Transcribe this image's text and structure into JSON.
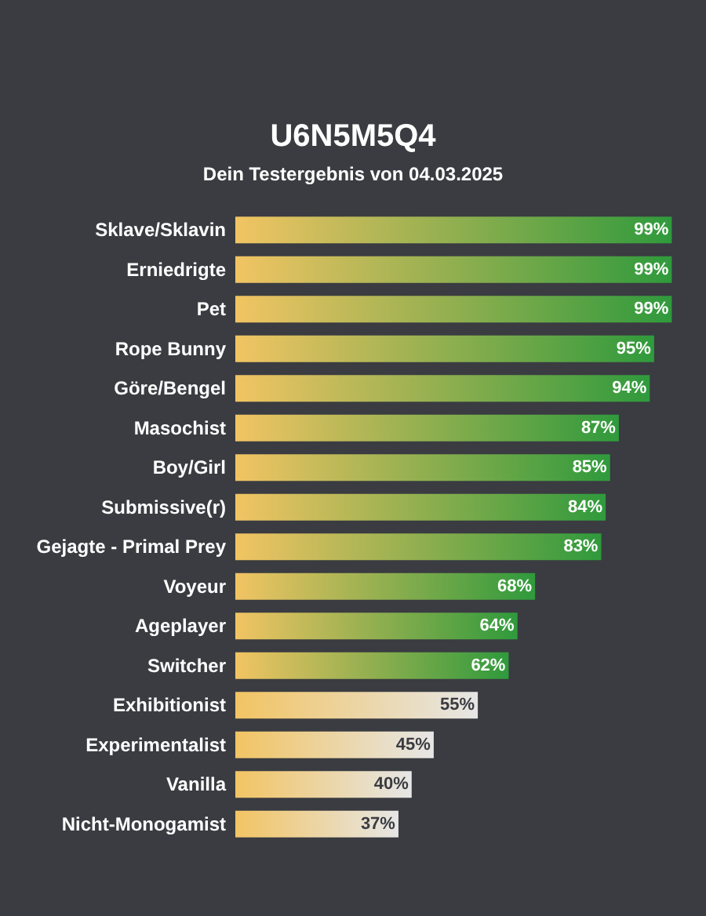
{
  "chart_data": {
    "type": "bar",
    "orientation": "horizontal",
    "tick_labels": "y",
    "title": "U6N5M5Q4",
    "subtitle": "Dein Testergebnis von 04.03.2025",
    "categories": [
      "Sklave/Sklavin",
      "Erniedrigte",
      "Pet",
      "Rope Bunny",
      "Göre/Bengel",
      "Masochist",
      "Boy/Girl",
      "Submissive(r)",
      "Gejagte - Primal Prey",
      "Voyeur",
      "Ageplayer",
      "Switcher",
      "Exhibitionist",
      "Experimentalist",
      "Vanilla",
      "Nicht-Monogamist"
    ],
    "values": [
      99,
      99,
      99,
      95,
      94,
      87,
      85,
      84,
      83,
      68,
      64,
      62,
      55,
      45,
      40,
      37
    ],
    "value_labels": [
      "99%",
      "99%",
      "99%",
      "95%",
      "94%",
      "87%",
      "85%",
      "84%",
      "83%",
      "68%",
      "64%",
      "62%",
      "55%",
      "45%",
      "40%",
      "37%"
    ],
    "colors": [
      "#2f9a3c",
      "#2f9a3c",
      "#2f9a3c",
      "#2f9a3c",
      "#2f9a3c",
      "#2f9a3c",
      "#2f9a3c",
      "#2f9a3c",
      "#2f9a3c",
      "#2f9a3c",
      "#2f9a3c",
      "#2f9a3c",
      "#e6e6e6",
      "#e6e6e6",
      "#e6e6e6",
      "#e6e6e6"
    ]
  }
}
